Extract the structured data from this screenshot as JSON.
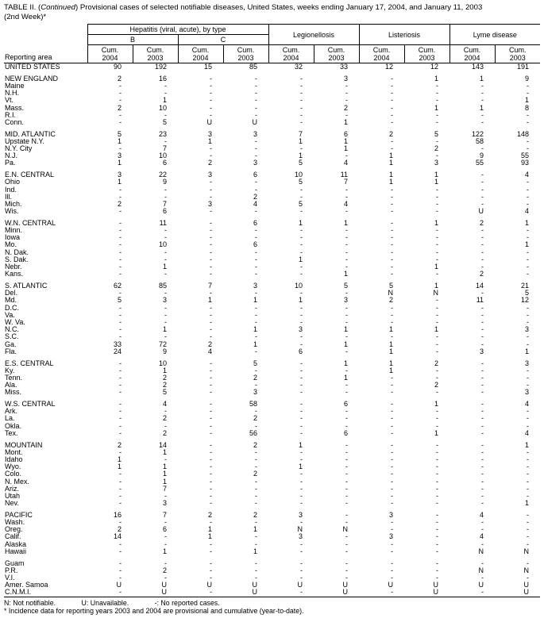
{
  "title": {
    "prefix": "TABLE II. (",
    "italic": "Continued",
    "suffix": ") Provisional cases of selected notifiable diseases, United States, weeks ending January 17, 2004, and January 11, 2003",
    "line2": "(2nd Week)*"
  },
  "header": {
    "reporting_area": "Reporting area",
    "hepatitis_group": "Hepatitis (viral, acute), by type",
    "sub_b": "B",
    "sub_c": "C",
    "legionellosis": "Legionellosis",
    "listeriosis": "Listeriosis",
    "lyme": "Lyme disease",
    "cum_label": "Cum.",
    "years": [
      "2004",
      "2003",
      "2004",
      "2003",
      "2004",
      "2003",
      "2004",
      "2003",
      "2004",
      "2003"
    ]
  },
  "rows": [
    {
      "area": "UNITED STATES",
      "values": [
        "90",
        "192",
        "15",
        "85",
        "32",
        "33",
        "12",
        "12",
        "143",
        "191"
      ]
    },
    {
      "area": "NEW ENGLAND",
      "gap": true,
      "values": [
        "2",
        "16",
        "-",
        "-",
        "-",
        "3",
        "-",
        "1",
        "1",
        "9"
      ]
    },
    {
      "area": "Maine",
      "values": [
        "-",
        "-",
        "-",
        "-",
        "-",
        "-",
        "-",
        "-",
        "-",
        "-"
      ]
    },
    {
      "area": "N.H.",
      "values": [
        "-",
        "-",
        "-",
        "-",
        "-",
        "-",
        "-",
        "-",
        "-",
        "-"
      ]
    },
    {
      "area": "Vt.",
      "values": [
        "-",
        "1",
        "-",
        "-",
        "-",
        "-",
        "-",
        "-",
        "-",
        "1"
      ]
    },
    {
      "area": "Mass.",
      "values": [
        "2",
        "10",
        "-",
        "-",
        "-",
        "2",
        "-",
        "1",
        "1",
        "8"
      ]
    },
    {
      "area": "R.I.",
      "values": [
        "-",
        "-",
        "-",
        "-",
        "-",
        "-",
        "-",
        "-",
        "-",
        "-"
      ]
    },
    {
      "area": "Conn.",
      "values": [
        "-",
        "5",
        "U",
        "U",
        "-",
        "1",
        "-",
        "-",
        "-",
        "-"
      ]
    },
    {
      "area": "MID. ATLANTIC",
      "gap": true,
      "values": [
        "5",
        "23",
        "3",
        "3",
        "7",
        "6",
        "2",
        "5",
        "122",
        "148"
      ]
    },
    {
      "area": "Upstate N.Y.",
      "values": [
        "1",
        "-",
        "1",
        "-",
        "1",
        "1",
        "-",
        "-",
        "58",
        "-"
      ]
    },
    {
      "area": "N.Y. City",
      "values": [
        "-",
        "7",
        "-",
        "-",
        "-",
        "1",
        "-",
        "2",
        "-",
        "-"
      ]
    },
    {
      "area": "N.J.",
      "values": [
        "3",
        "10",
        "-",
        "-",
        "1",
        "-",
        "1",
        "-",
        "9",
        "55"
      ]
    },
    {
      "area": "Pa.",
      "values": [
        "1",
        "6",
        "2",
        "3",
        "5",
        "4",
        "1",
        "3",
        "55",
        "93"
      ]
    },
    {
      "area": "E.N. CENTRAL",
      "gap": true,
      "values": [
        "3",
        "22",
        "3",
        "6",
        "10",
        "11",
        "1",
        "1",
        "-",
        "4"
      ]
    },
    {
      "area": "Ohio",
      "values": [
        "1",
        "9",
        "-",
        "-",
        "5",
        "7",
        "1",
        "1",
        "-",
        "-"
      ]
    },
    {
      "area": "Ind.",
      "values": [
        "-",
        "-",
        "-",
        "-",
        "-",
        "-",
        "-",
        "-",
        "-",
        "-"
      ]
    },
    {
      "area": "Ill.",
      "values": [
        "-",
        "-",
        "-",
        "2",
        "-",
        "-",
        "-",
        "-",
        "-",
        "-"
      ]
    },
    {
      "area": "Mich.",
      "values": [
        "2",
        "7",
        "3",
        "4",
        "5",
        "4",
        "-",
        "-",
        "-",
        "-"
      ]
    },
    {
      "area": "Wis.",
      "values": [
        "-",
        "6",
        "-",
        "-",
        "-",
        "-",
        "-",
        "-",
        "U",
        "4"
      ]
    },
    {
      "area": "W.N. CENTRAL",
      "gap": true,
      "values": [
        "-",
        "11",
        "-",
        "6",
        "1",
        "1",
        "-",
        "1",
        "2",
        "1"
      ]
    },
    {
      "area": "Minn.",
      "values": [
        "-",
        "-",
        "-",
        "-",
        "-",
        "-",
        "-",
        "-",
        "-",
        "-"
      ]
    },
    {
      "area": "Iowa",
      "values": [
        "-",
        "-",
        "-",
        "-",
        "-",
        "-",
        "-",
        "-",
        "-",
        "-"
      ]
    },
    {
      "area": "Mo.",
      "values": [
        "-",
        "10",
        "-",
        "6",
        "-",
        "-",
        "-",
        "-",
        "-",
        "1"
      ]
    },
    {
      "area": "N. Dak.",
      "values": [
        "-",
        "-",
        "-",
        "-",
        "-",
        "-",
        "-",
        "-",
        "-",
        "-"
      ]
    },
    {
      "area": "S. Dak.",
      "values": [
        "-",
        "-",
        "-",
        "-",
        "1",
        "-",
        "-",
        "-",
        "-",
        "-"
      ]
    },
    {
      "area": "Nebr.",
      "values": [
        "-",
        "1",
        "-",
        "-",
        "-",
        "-",
        "-",
        "1",
        "-",
        "-"
      ]
    },
    {
      "area": "Kans.",
      "values": [
        "-",
        "-",
        "-",
        "-",
        "-",
        "1",
        "-",
        "-",
        "2",
        "-"
      ]
    },
    {
      "area": "S. ATLANTIC",
      "gap": true,
      "values": [
        "62",
        "85",
        "7",
        "3",
        "10",
        "5",
        "5",
        "1",
        "14",
        "21"
      ]
    },
    {
      "area": "Del.",
      "values": [
        "-",
        "-",
        "-",
        "-",
        "-",
        "-",
        "N",
        "N",
        "-",
        "5"
      ]
    },
    {
      "area": "Md.",
      "values": [
        "5",
        "3",
        "1",
        "1",
        "1",
        "3",
        "2",
        "-",
        "11",
        "12"
      ]
    },
    {
      "area": "D.C.",
      "values": [
        "-",
        "-",
        "-",
        "-",
        "-",
        "-",
        "-",
        "-",
        "-",
        "-"
      ]
    },
    {
      "area": "Va.",
      "values": [
        "-",
        "-",
        "-",
        "-",
        "-",
        "-",
        "-",
        "-",
        "-",
        "-"
      ]
    },
    {
      "area": "W. Va.",
      "values": [
        "-",
        "-",
        "-",
        "-",
        "-",
        "-",
        "-",
        "-",
        "-",
        "-"
      ]
    },
    {
      "area": "N.C.",
      "values": [
        "-",
        "1",
        "-",
        "1",
        "3",
        "1",
        "1",
        "1",
        "-",
        "3"
      ]
    },
    {
      "area": "S.C.",
      "values": [
        "-",
        "-",
        "-",
        "-",
        "-",
        "-",
        "-",
        "-",
        "-",
        "-"
      ]
    },
    {
      "area": "Ga.",
      "values": [
        "33",
        "72",
        "2",
        "1",
        "-",
        "1",
        "1",
        "-",
        "-",
        "-"
      ]
    },
    {
      "area": "Fla.",
      "values": [
        "24",
        "9",
        "4",
        "-",
        "6",
        "-",
        "1",
        "-",
        "3",
        "1"
      ]
    },
    {
      "area": "E.S. CENTRAL",
      "gap": true,
      "values": [
        "-",
        "10",
        "-",
        "5",
        "-",
        "1",
        "1",
        "2",
        "-",
        "3"
      ]
    },
    {
      "area": "Ky.",
      "values": [
        "-",
        "1",
        "-",
        "-",
        "-",
        "-",
        "1",
        "-",
        "-",
        "-"
      ]
    },
    {
      "area": "Tenn.",
      "values": [
        "-",
        "2",
        "-",
        "2",
        "-",
        "1",
        "-",
        "-",
        "-",
        "-"
      ]
    },
    {
      "area": "Ala.",
      "values": [
        "-",
        "2",
        "-",
        "-",
        "-",
        "-",
        "-",
        "2",
        "-",
        "-"
      ]
    },
    {
      "area": "Miss.",
      "values": [
        "-",
        "5",
        "-",
        "3",
        "-",
        "-",
        "-",
        "-",
        "-",
        "3"
      ]
    },
    {
      "area": "W.S. CENTRAL",
      "gap": true,
      "values": [
        "-",
        "4",
        "-",
        "58",
        "-",
        "6",
        "-",
        "1",
        "-",
        "4"
      ]
    },
    {
      "area": "Ark.",
      "values": [
        "-",
        "-",
        "-",
        "-",
        "-",
        "-",
        "-",
        "-",
        "-",
        "-"
      ]
    },
    {
      "area": "La.",
      "values": [
        "-",
        "2",
        "-",
        "2",
        "-",
        "-",
        "-",
        "-",
        "-",
        "-"
      ]
    },
    {
      "area": "Okla.",
      "values": [
        "-",
        "-",
        "-",
        "-",
        "-",
        "-",
        "-",
        "-",
        "-",
        "-"
      ]
    },
    {
      "area": "Tex.",
      "values": [
        "-",
        "2",
        "-",
        "56",
        "-",
        "6",
        "-",
        "1",
        "-",
        "4"
      ]
    },
    {
      "area": "MOUNTAIN",
      "gap": true,
      "values": [
        "2",
        "14",
        "-",
        "2",
        "1",
        "-",
        "-",
        "-",
        "-",
        "1"
      ]
    },
    {
      "area": "Mont.",
      "values": [
        "-",
        "1",
        "-",
        "-",
        "-",
        "-",
        "-",
        "-",
        "-",
        "-"
      ]
    },
    {
      "area": "Idaho",
      "values": [
        "1",
        "-",
        "-",
        "-",
        "-",
        "-",
        "-",
        "-",
        "-",
        "-"
      ]
    },
    {
      "area": "Wyo.",
      "values": [
        "1",
        "1",
        "-",
        "-",
        "1",
        "-",
        "-",
        "-",
        "-",
        "-"
      ]
    },
    {
      "area": "Colo.",
      "values": [
        "-",
        "1",
        "-",
        "2",
        "-",
        "-",
        "-",
        "-",
        "-",
        "-"
      ]
    },
    {
      "area": "N. Mex.",
      "values": [
        "-",
        "1",
        "-",
        "-",
        "-",
        "-",
        "-",
        "-",
        "-",
        "-"
      ]
    },
    {
      "area": "Ariz.",
      "values": [
        "-",
        "7",
        "-",
        "-",
        "-",
        "-",
        "-",
        "-",
        "-",
        "-"
      ]
    },
    {
      "area": "Utah",
      "values": [
        "-",
        "-",
        "-",
        "-",
        "-",
        "-",
        "-",
        "-",
        "-",
        "-"
      ]
    },
    {
      "area": "Nev.",
      "values": [
        "-",
        "3",
        "-",
        "-",
        "-",
        "-",
        "-",
        "-",
        "-",
        "1"
      ]
    },
    {
      "area": "PACIFIC",
      "gap": true,
      "values": [
        "16",
        "7",
        "2",
        "2",
        "3",
        "-",
        "3",
        "-",
        "4",
        "-"
      ]
    },
    {
      "area": "Wash.",
      "values": [
        "-",
        "-",
        "-",
        "-",
        "-",
        "-",
        "-",
        "-",
        "-",
        "-"
      ]
    },
    {
      "area": "Oreg.",
      "values": [
        "2",
        "6",
        "1",
        "1",
        "N",
        "N",
        "-",
        "-",
        "-",
        "-"
      ]
    },
    {
      "area": "Calif.",
      "values": [
        "14",
        "-",
        "1",
        "-",
        "3",
        "-",
        "3",
        "-",
        "4",
        "-"
      ]
    },
    {
      "area": "Alaska",
      "values": [
        "-",
        "-",
        "-",
        "-",
        "-",
        "-",
        "-",
        "-",
        "-",
        "-"
      ]
    },
    {
      "area": "Hawaii",
      "values": [
        "-",
        "1",
        "-",
        "1",
        "-",
        "-",
        "-",
        "-",
        "N",
        "N"
      ]
    },
    {
      "area": "Guam",
      "gap": true,
      "values": [
        "-",
        "-",
        "-",
        "-",
        "-",
        "-",
        "-",
        "-",
        "-",
        "-"
      ]
    },
    {
      "area": "P.R.",
      "values": [
        "-",
        "2",
        "-",
        "-",
        "-",
        "-",
        "-",
        "-",
        "N",
        "N"
      ]
    },
    {
      "area": "V.I.",
      "values": [
        "-",
        "-",
        "-",
        "-",
        "-",
        "-",
        "-",
        "-",
        "-",
        "-"
      ]
    },
    {
      "area": "Amer. Samoa",
      "values": [
        "U",
        "U",
        "U",
        "U",
        "U",
        "U",
        "U",
        "U",
        "U",
        "U"
      ]
    },
    {
      "area": "C.N.M.I.",
      "values": [
        "-",
        "U",
        "-",
        "U",
        "-",
        "U",
        "-",
        "U",
        "-",
        "U"
      ]
    }
  ],
  "footnotes": {
    "n": "N: Not notifiable.",
    "u": "U: Unavailable.",
    "dash": "-: No reported cases.",
    "star": "* Incidence data for reporting years 2003 and 2004 are provisional and cumulative (year-to-date)."
  }
}
